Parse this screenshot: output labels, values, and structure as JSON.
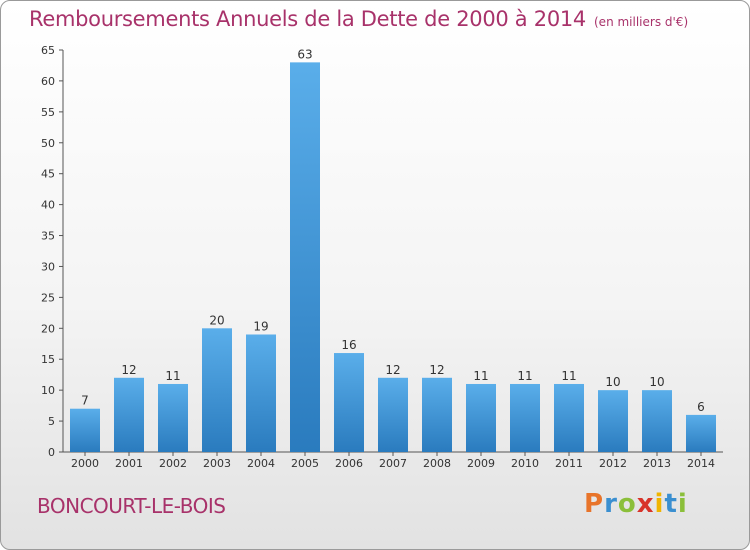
{
  "title": "Remboursements Annuels de la Dette de 2000 à 2014",
  "unit": "(en milliers d'€)",
  "commune": "BONCOURT-LE-BOIS",
  "logo": {
    "letters": [
      "P",
      "r",
      "o",
      "x",
      "i",
      "t",
      "i"
    ],
    "colors": [
      "#e8742a",
      "#3a8fd0",
      "#8bbf3a",
      "#d8342a",
      "#f0b400",
      "#3a8fd0",
      "#8bbf3a"
    ]
  },
  "colors": {
    "bar_top": "#5aaeea",
    "bar_bottom": "#2a7bbe",
    "accent_text": "#a8326a"
  },
  "chart_data": {
    "type": "bar",
    "title": "Remboursements Annuels de la Dette de 2000 à 2014",
    "categories": [
      "2000",
      "2001",
      "2002",
      "2003",
      "2004",
      "2005",
      "2006",
      "2007",
      "2008",
      "2009",
      "2010",
      "2011",
      "2012",
      "2013",
      "2014"
    ],
    "values": [
      7,
      12,
      11,
      20,
      19,
      63,
      16,
      12,
      12,
      11,
      11,
      11,
      10,
      10,
      6
    ],
    "ylim": [
      0,
      65
    ],
    "yticks": [
      0,
      5,
      10,
      15,
      20,
      25,
      30,
      35,
      40,
      45,
      50,
      55,
      60,
      65
    ],
    "grid": false
  }
}
